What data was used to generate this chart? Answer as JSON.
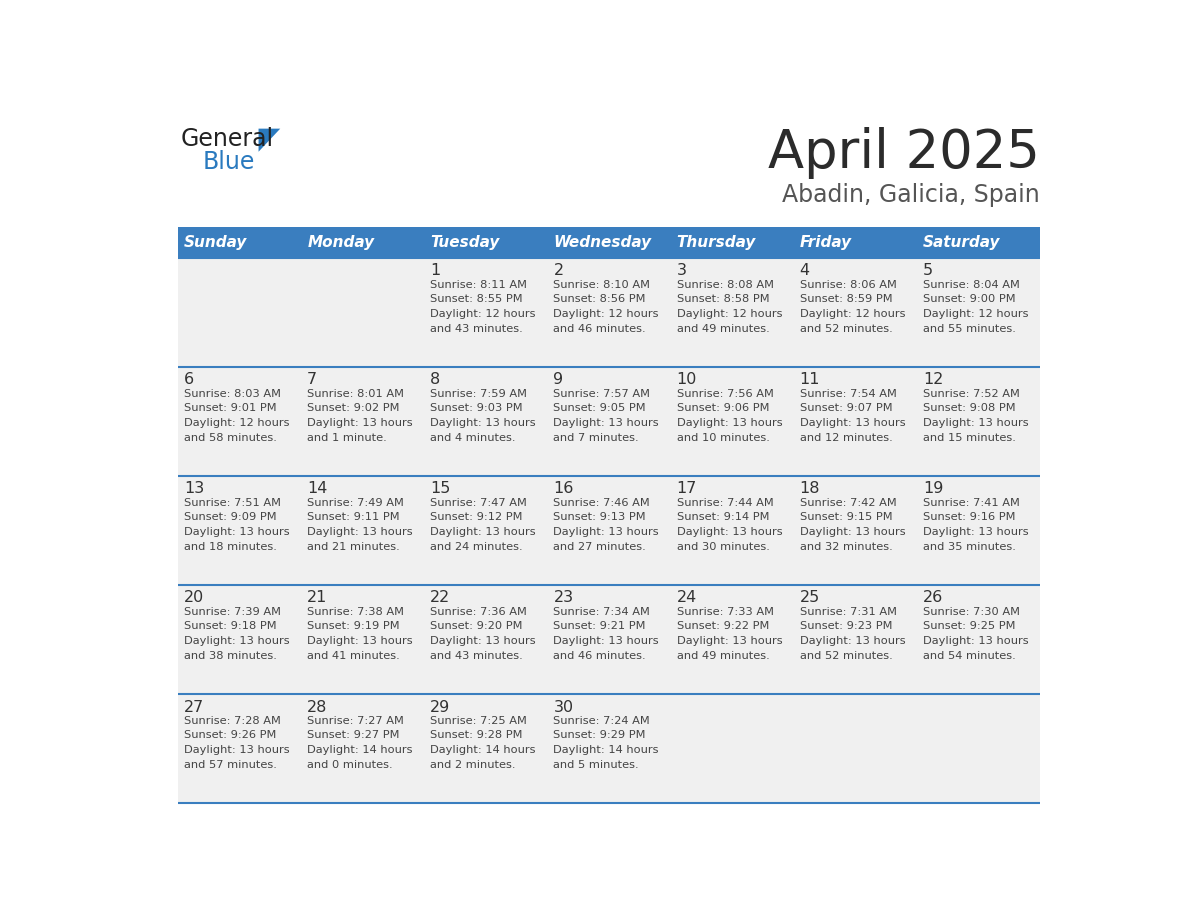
{
  "title": "April 2025",
  "subtitle": "Abadin, Galicia, Spain",
  "days_of_week": [
    "Sunday",
    "Monday",
    "Tuesday",
    "Wednesday",
    "Thursday",
    "Friday",
    "Saturday"
  ],
  "header_bg": "#3a7ebf",
  "header_text": "#ffffff",
  "cell_bg": "#f0f0f0",
  "cell_border": "#3a7ebf",
  "text_color": "#333333",
  "info_text_color": "#444444",
  "logo_black": "#222222",
  "logo_blue": "#2a7abf",
  "calendar": [
    [
      {
        "day": null,
        "info": null
      },
      {
        "day": null,
        "info": null
      },
      {
        "day": 1,
        "info": "Sunrise: 8:11 AM\nSunset: 8:55 PM\nDaylight: 12 hours\nand 43 minutes."
      },
      {
        "day": 2,
        "info": "Sunrise: 8:10 AM\nSunset: 8:56 PM\nDaylight: 12 hours\nand 46 minutes."
      },
      {
        "day": 3,
        "info": "Sunrise: 8:08 AM\nSunset: 8:58 PM\nDaylight: 12 hours\nand 49 minutes."
      },
      {
        "day": 4,
        "info": "Sunrise: 8:06 AM\nSunset: 8:59 PM\nDaylight: 12 hours\nand 52 minutes."
      },
      {
        "day": 5,
        "info": "Sunrise: 8:04 AM\nSunset: 9:00 PM\nDaylight: 12 hours\nand 55 minutes."
      }
    ],
    [
      {
        "day": 6,
        "info": "Sunrise: 8:03 AM\nSunset: 9:01 PM\nDaylight: 12 hours\nand 58 minutes."
      },
      {
        "day": 7,
        "info": "Sunrise: 8:01 AM\nSunset: 9:02 PM\nDaylight: 13 hours\nand 1 minute."
      },
      {
        "day": 8,
        "info": "Sunrise: 7:59 AM\nSunset: 9:03 PM\nDaylight: 13 hours\nand 4 minutes."
      },
      {
        "day": 9,
        "info": "Sunrise: 7:57 AM\nSunset: 9:05 PM\nDaylight: 13 hours\nand 7 minutes."
      },
      {
        "day": 10,
        "info": "Sunrise: 7:56 AM\nSunset: 9:06 PM\nDaylight: 13 hours\nand 10 minutes."
      },
      {
        "day": 11,
        "info": "Sunrise: 7:54 AM\nSunset: 9:07 PM\nDaylight: 13 hours\nand 12 minutes."
      },
      {
        "day": 12,
        "info": "Sunrise: 7:52 AM\nSunset: 9:08 PM\nDaylight: 13 hours\nand 15 minutes."
      }
    ],
    [
      {
        "day": 13,
        "info": "Sunrise: 7:51 AM\nSunset: 9:09 PM\nDaylight: 13 hours\nand 18 minutes."
      },
      {
        "day": 14,
        "info": "Sunrise: 7:49 AM\nSunset: 9:11 PM\nDaylight: 13 hours\nand 21 minutes."
      },
      {
        "day": 15,
        "info": "Sunrise: 7:47 AM\nSunset: 9:12 PM\nDaylight: 13 hours\nand 24 minutes."
      },
      {
        "day": 16,
        "info": "Sunrise: 7:46 AM\nSunset: 9:13 PM\nDaylight: 13 hours\nand 27 minutes."
      },
      {
        "day": 17,
        "info": "Sunrise: 7:44 AM\nSunset: 9:14 PM\nDaylight: 13 hours\nand 30 minutes."
      },
      {
        "day": 18,
        "info": "Sunrise: 7:42 AM\nSunset: 9:15 PM\nDaylight: 13 hours\nand 32 minutes."
      },
      {
        "day": 19,
        "info": "Sunrise: 7:41 AM\nSunset: 9:16 PM\nDaylight: 13 hours\nand 35 minutes."
      }
    ],
    [
      {
        "day": 20,
        "info": "Sunrise: 7:39 AM\nSunset: 9:18 PM\nDaylight: 13 hours\nand 38 minutes."
      },
      {
        "day": 21,
        "info": "Sunrise: 7:38 AM\nSunset: 9:19 PM\nDaylight: 13 hours\nand 41 minutes."
      },
      {
        "day": 22,
        "info": "Sunrise: 7:36 AM\nSunset: 9:20 PM\nDaylight: 13 hours\nand 43 minutes."
      },
      {
        "day": 23,
        "info": "Sunrise: 7:34 AM\nSunset: 9:21 PM\nDaylight: 13 hours\nand 46 minutes."
      },
      {
        "day": 24,
        "info": "Sunrise: 7:33 AM\nSunset: 9:22 PM\nDaylight: 13 hours\nand 49 minutes."
      },
      {
        "day": 25,
        "info": "Sunrise: 7:31 AM\nSunset: 9:23 PM\nDaylight: 13 hours\nand 52 minutes."
      },
      {
        "day": 26,
        "info": "Sunrise: 7:30 AM\nSunset: 9:25 PM\nDaylight: 13 hours\nand 54 minutes."
      }
    ],
    [
      {
        "day": 27,
        "info": "Sunrise: 7:28 AM\nSunset: 9:26 PM\nDaylight: 13 hours\nand 57 minutes."
      },
      {
        "day": 28,
        "info": "Sunrise: 7:27 AM\nSunset: 9:27 PM\nDaylight: 14 hours\nand 0 minutes."
      },
      {
        "day": 29,
        "info": "Sunrise: 7:25 AM\nSunset: 9:28 PM\nDaylight: 14 hours\nand 2 minutes."
      },
      {
        "day": 30,
        "info": "Sunrise: 7:24 AM\nSunset: 9:29 PM\nDaylight: 14 hours\nand 5 minutes."
      },
      {
        "day": null,
        "info": null
      },
      {
        "day": null,
        "info": null
      },
      {
        "day": null,
        "info": null
      }
    ]
  ]
}
